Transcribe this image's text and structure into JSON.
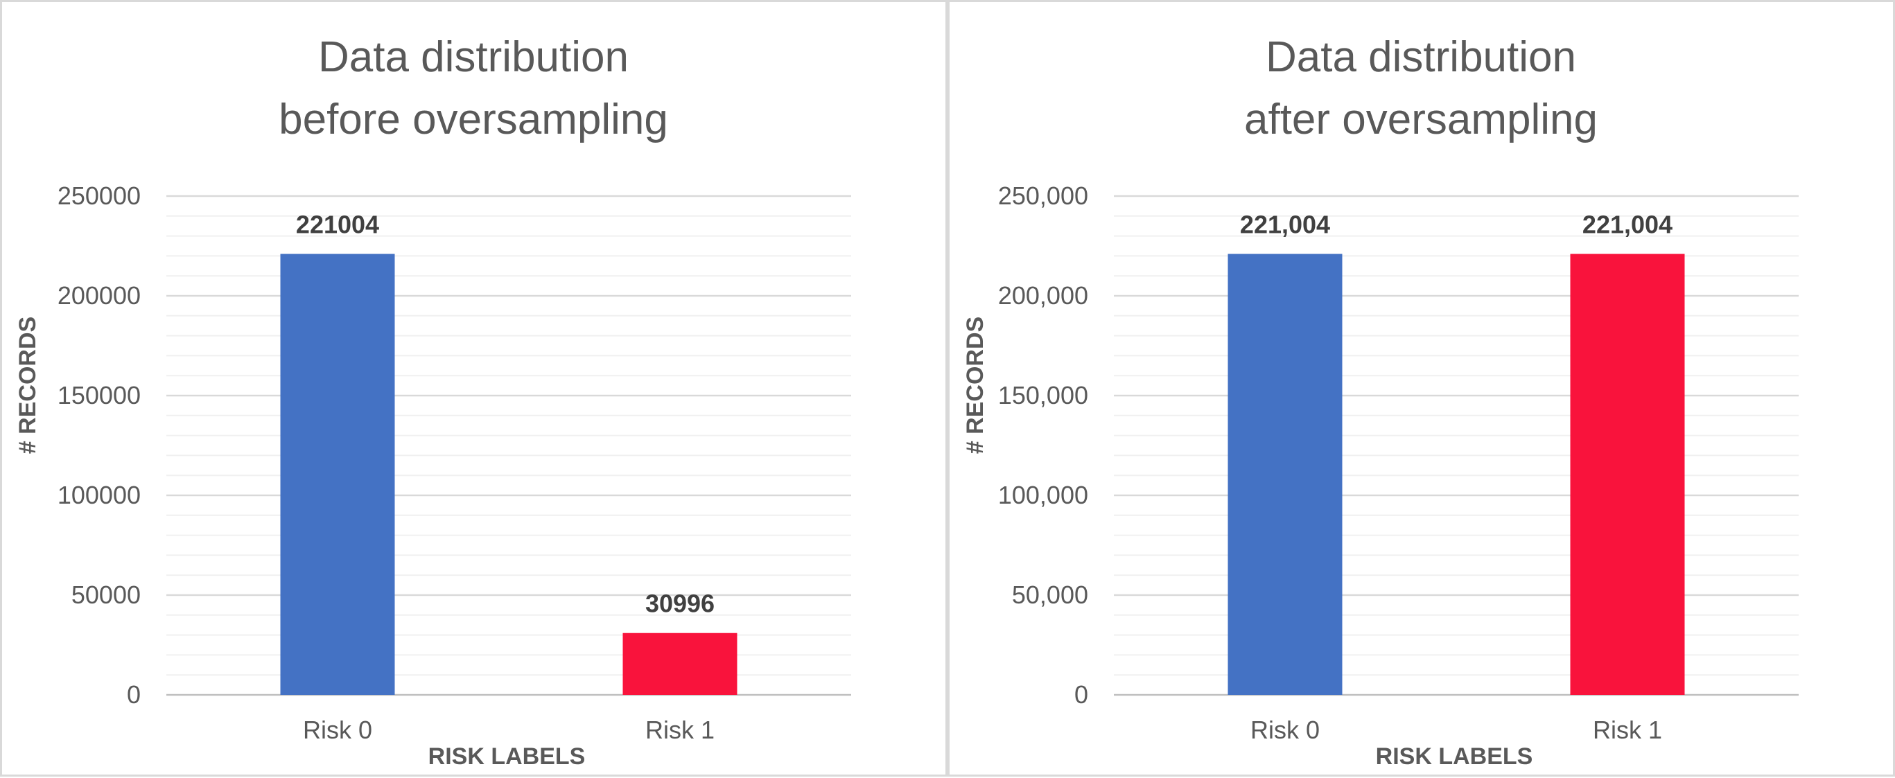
{
  "charts": [
    {
      "chart_data": {
        "type": "bar",
        "title_lines": [
          "Data distribution",
          "before oversampling"
        ],
        "xlabel": "RISK LABELS",
        "ylabel": "# RECORDS",
        "categories": [
          "Risk 0",
          "Risk 1"
        ],
        "values": [
          221004,
          30996
        ],
        "value_labels": [
          "221004",
          "30996"
        ],
        "colors": [
          "#4472c4",
          "#f9133c"
        ],
        "ylim": [
          0,
          250000
        ],
        "yticks": [
          0,
          50000,
          100000,
          150000,
          200000,
          250000
        ],
        "ytick_labels": [
          "0",
          "50000",
          "100000",
          "150000",
          "200000",
          "250000"
        ],
        "grid": true,
        "minor_grid": true
      }
    },
    {
      "chart_data": {
        "type": "bar",
        "title_lines": [
          "Data distribution",
          "after oversampling"
        ],
        "xlabel": "RISK LABELS",
        "ylabel": "# RECORDS",
        "categories": [
          "Risk 0",
          "Risk 1"
        ],
        "values": [
          221004,
          221004
        ],
        "value_labels": [
          "221,004",
          "221,004"
        ],
        "colors": [
          "#4472c4",
          "#f9133c"
        ],
        "ylim": [
          0,
          250000
        ],
        "yticks": [
          0,
          50000,
          100000,
          150000,
          200000,
          250000
        ],
        "ytick_labels": [
          "0",
          "50,000",
          "100,000",
          "150,000",
          "200,000",
          "250,000"
        ],
        "grid": true,
        "minor_grid": true
      }
    }
  ]
}
